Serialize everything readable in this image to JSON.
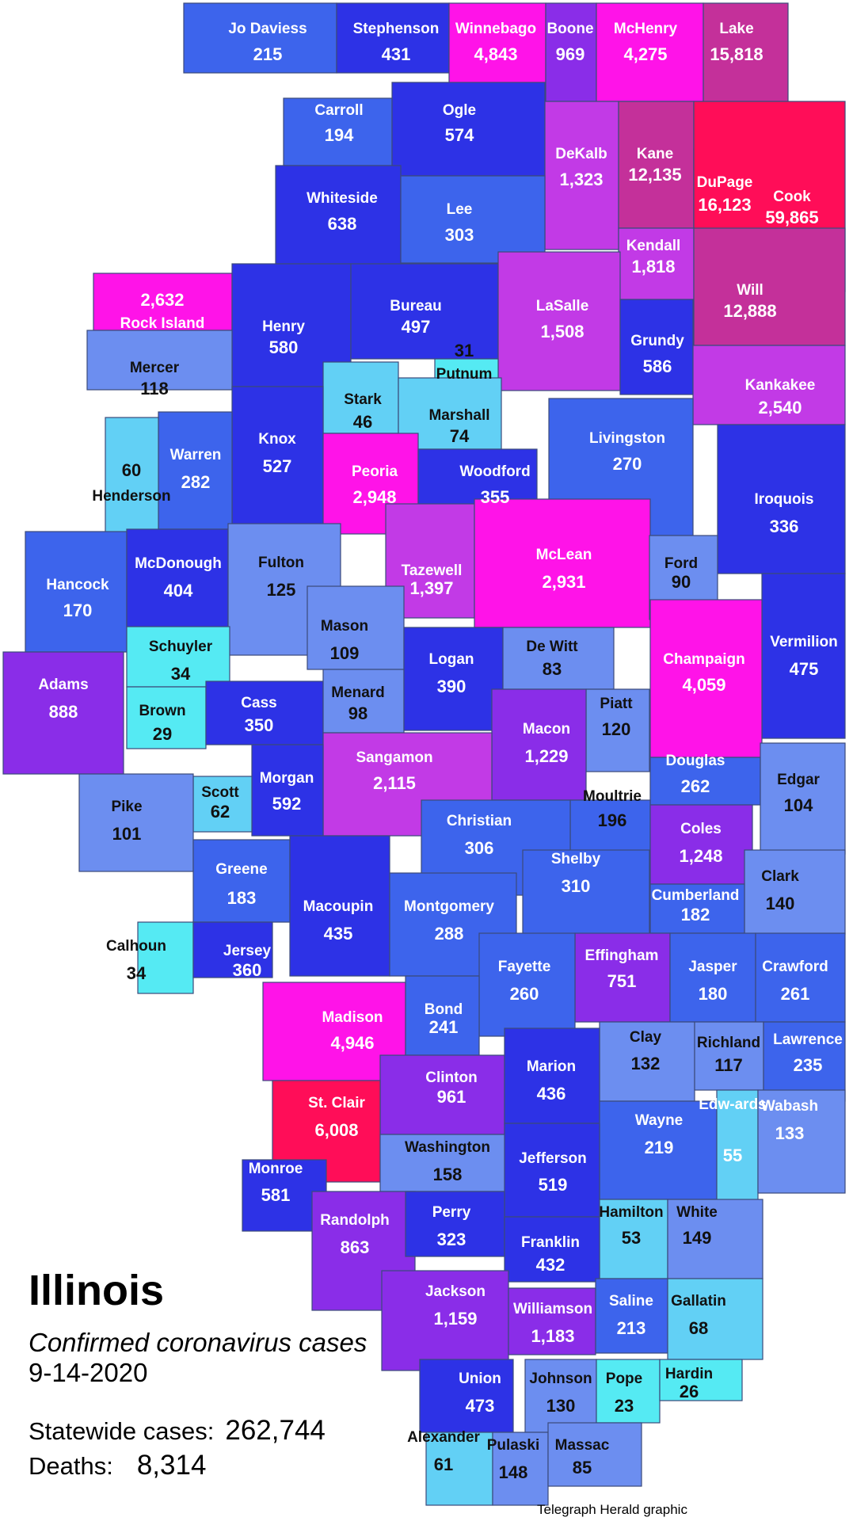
{
  "title": "Illinois",
  "subtitle": "Confirmed coronavirus cases",
  "date": "9-14-2020",
  "stats": {
    "statewide_label": "Statewide cases:",
    "statewide_value": "262,744",
    "deaths_label": "Deaths:",
    "deaths_value": "8,314"
  },
  "credit": "Telegraph Herald graphic",
  "colors": {
    "lightest": "#62d0f5",
    "light": "#6c8ef0",
    "medium": "#3d64ec",
    "dark": "#2d32e6",
    "purple": "#8a2de8",
    "violet": "#c23ae6",
    "magenta": "#ff13e8",
    "rose": "#c4309a",
    "red": "#ff0d58",
    "cyan": "#55eaf3"
  },
  "counties": [
    {
      "name": "Jo Daviess",
      "cases": "215",
      "color": "#3d64ec"
    },
    {
      "name": "Stephenson",
      "cases": "431",
      "color": "#2d32e6"
    },
    {
      "name": "Winnebago",
      "cases": "4,843",
      "color": "#ff13e8"
    },
    {
      "name": "Boone",
      "cases": "969",
      "color": "#8a2de8"
    },
    {
      "name": "McHenry",
      "cases": "4,275",
      "color": "#ff13e8"
    },
    {
      "name": "Lake",
      "cases": "15,818",
      "color": "#c4309a"
    },
    {
      "name": "Carroll",
      "cases": "194",
      "color": "#3d64ec"
    },
    {
      "name": "Ogle",
      "cases": "574",
      "color": "#2d32e6"
    },
    {
      "name": "DeKalb",
      "cases": "1,323",
      "color": "#c23ae6"
    },
    {
      "name": "Kane",
      "cases": "12,135",
      "color": "#c4309a"
    },
    {
      "name": "DuPage",
      "cases": "16,123",
      "color": "#c4309a"
    },
    {
      "name": "Cook",
      "cases": "59,865",
      "color": "#ff0d58"
    },
    {
      "name": "Whiteside",
      "cases": "638",
      "color": "#2d32e6"
    },
    {
      "name": "Lee",
      "cases": "303",
      "color": "#3d64ec"
    },
    {
      "name": "Kendall",
      "cases": "1,818",
      "color": "#c23ae6"
    },
    {
      "name": "Will",
      "cases": "12,888",
      "color": "#c4309a"
    },
    {
      "name": "Rock Island",
      "cases": "2,632",
      "color": "#ff13e8"
    },
    {
      "name": "Henry",
      "cases": "580",
      "color": "#2d32e6"
    },
    {
      "name": "Bureau",
      "cases": "497",
      "color": "#2d32e6"
    },
    {
      "name": "LaSalle",
      "cases": "1,508",
      "color": "#c23ae6"
    },
    {
      "name": "Grundy",
      "cases": "586",
      "color": "#2d32e6"
    },
    {
      "name": "Putnum",
      "cases": "31",
      "color": "#55eaf3"
    },
    {
      "name": "Mercer",
      "cases": "118",
      "color": "#6c8ef0"
    },
    {
      "name": "Stark",
      "cases": "46",
      "color": "#62d0f5"
    },
    {
      "name": "Marshall",
      "cases": "74",
      "color": "#62d0f5"
    },
    {
      "name": "Kankakee",
      "cases": "2,540",
      "color": "#c23ae6"
    },
    {
      "name": "Knox",
      "cases": "527",
      "color": "#2d32e6"
    },
    {
      "name": "Warren",
      "cases": "282",
      "color": "#3d64ec"
    },
    {
      "name": "Henderson",
      "cases": "60",
      "color": "#62d0f5"
    },
    {
      "name": "Peoria",
      "cases": "2,948",
      "color": "#ff13e8"
    },
    {
      "name": "Woodford",
      "cases": "355",
      "color": "#2d32e6"
    },
    {
      "name": "Livingston",
      "cases": "270",
      "color": "#3d64ec"
    },
    {
      "name": "Iroquois",
      "cases": "336",
      "color": "#2d32e6"
    },
    {
      "name": "Hancock",
      "cases": "170",
      "color": "#3d64ec"
    },
    {
      "name": "McDonough",
      "cases": "404",
      "color": "#2d32e6"
    },
    {
      "name": "Fulton",
      "cases": "125",
      "color": "#6c8ef0"
    },
    {
      "name": "Tazewell",
      "cases": "1,397",
      "color": "#c23ae6"
    },
    {
      "name": "McLean",
      "cases": "2,931",
      "color": "#ff13e8"
    },
    {
      "name": "Ford",
      "cases": "90",
      "color": "#6c8ef0"
    },
    {
      "name": "Schuyler",
      "cases": "34",
      "color": "#55eaf3"
    },
    {
      "name": "Mason",
      "cases": "109",
      "color": "#6c8ef0"
    },
    {
      "name": "Vermilion",
      "cases": "475",
      "color": "#2d32e6"
    },
    {
      "name": "Adams",
      "cases": "888",
      "color": "#8a2de8"
    },
    {
      "name": "Brown",
      "cases": "29",
      "color": "#55eaf3"
    },
    {
      "name": "Cass",
      "cases": "350",
      "color": "#2d32e6"
    },
    {
      "name": "Menard",
      "cases": "98",
      "color": "#6c8ef0"
    },
    {
      "name": "Logan",
      "cases": "390",
      "color": "#2d32e6"
    },
    {
      "name": "De Witt",
      "cases": "83",
      "color": "#6c8ef0"
    },
    {
      "name": "Champaign",
      "cases": "4,059",
      "color": "#ff13e8"
    },
    {
      "name": "Piatt",
      "cases": "120",
      "color": "#6c8ef0"
    },
    {
      "name": "Macon",
      "cases": "1,229",
      "color": "#8a2de8"
    },
    {
      "name": "Sangamon",
      "cases": "2,115",
      "color": "#c23ae6"
    },
    {
      "name": "Morgan",
      "cases": "592",
      "color": "#2d32e6"
    },
    {
      "name": "Scott",
      "cases": "62",
      "color": "#62d0f5"
    },
    {
      "name": "Pike",
      "cases": "101",
      "color": "#6c8ef0"
    },
    {
      "name": "Douglas",
      "cases": "262",
      "color": "#3d64ec"
    },
    {
      "name": "Edgar",
      "cases": "104",
      "color": "#6c8ef0"
    },
    {
      "name": "Moultrie",
      "cases": "196",
      "color": "#3d64ec"
    },
    {
      "name": "Christian",
      "cases": "306",
      "color": "#3d64ec"
    },
    {
      "name": "Coles",
      "cases": "1,248",
      "color": "#8a2de8"
    },
    {
      "name": "Shelby",
      "cases": "310",
      "color": "#3d64ec"
    },
    {
      "name": "Greene",
      "cases": "183",
      "color": "#3d64ec"
    },
    {
      "name": "Macoupin",
      "cases": "435",
      "color": "#2d32e6"
    },
    {
      "name": "Montgomery",
      "cases": "288",
      "color": "#3d64ec"
    },
    {
      "name": "Clark",
      "cases": "140",
      "color": "#6c8ef0"
    },
    {
      "name": "Cumberland",
      "cases": "182",
      "color": "#3d64ec"
    },
    {
      "name": "Calhoun",
      "cases": "34",
      "color": "#55eaf3"
    },
    {
      "name": "Jersey",
      "cases": "360",
      "color": "#2d32e6"
    },
    {
      "name": "Effingham",
      "cases": "751",
      "color": "#8a2de8"
    },
    {
      "name": "Fayette",
      "cases": "260",
      "color": "#3d64ec"
    },
    {
      "name": "Jasper",
      "cases": "180",
      "color": "#3d64ec"
    },
    {
      "name": "Crawford",
      "cases": "261",
      "color": "#3d64ec"
    },
    {
      "name": "Madison",
      "cases": "4,946",
      "color": "#ff13e8"
    },
    {
      "name": "Bond",
      "cases": "241",
      "color": "#3d64ec"
    },
    {
      "name": "Clay",
      "cases": "132",
      "color": "#6c8ef0"
    },
    {
      "name": "Richland",
      "cases": "117",
      "color": "#6c8ef0"
    },
    {
      "name": "Lawrence",
      "cases": "235",
      "color": "#3d64ec"
    },
    {
      "name": "Clinton",
      "cases": "961",
      "color": "#8a2de8"
    },
    {
      "name": "Marion",
      "cases": "436",
      "color": "#2d32e6"
    },
    {
      "name": "St. Clair",
      "cases": "6,008",
      "color": "#ff0d58"
    },
    {
      "name": "Wayne",
      "cases": "219",
      "color": "#3d64ec"
    },
    {
      "name": "Edw-ards",
      "cases": "55",
      "color": "#62d0f5"
    },
    {
      "name": "Wabash",
      "cases": "133",
      "color": "#6c8ef0"
    },
    {
      "name": "Washington",
      "cases": "158",
      "color": "#6c8ef0"
    },
    {
      "name": "Jefferson",
      "cases": "519",
      "color": "#2d32e6"
    },
    {
      "name": "Monroe",
      "cases": "581",
      "color": "#2d32e6"
    },
    {
      "name": "Randolph",
      "cases": "863",
      "color": "#8a2de8"
    },
    {
      "name": "Perry",
      "cases": "323",
      "color": "#2d32e6"
    },
    {
      "name": "Hamilton",
      "cases": "53",
      "color": "#62d0f5"
    },
    {
      "name": "White",
      "cases": "149",
      "color": "#6c8ef0"
    },
    {
      "name": "Franklin",
      "cases": "432",
      "color": "#2d32e6"
    },
    {
      "name": "Jackson",
      "cases": "1,159",
      "color": "#8a2de8"
    },
    {
      "name": "Williamson",
      "cases": "1,183",
      "color": "#8a2de8"
    },
    {
      "name": "Saline",
      "cases": "213",
      "color": "#3d64ec"
    },
    {
      "name": "Gallatin",
      "cases": "68",
      "color": "#62d0f5"
    },
    {
      "name": "Union",
      "cases": "473",
      "color": "#2d32e6"
    },
    {
      "name": "Johnson",
      "cases": "130",
      "color": "#6c8ef0"
    },
    {
      "name": "Pope",
      "cases": "23",
      "color": "#55eaf3"
    },
    {
      "name": "Hardin",
      "cases": "26",
      "color": "#55eaf3"
    },
    {
      "name": "Alexander",
      "cases": "61",
      "color": "#62d0f5"
    },
    {
      "name": "Pulaski",
      "cases": "148",
      "color": "#6c8ef0"
    },
    {
      "name": "Massac",
      "cases": "85",
      "color": "#6c8ef0"
    }
  ]
}
